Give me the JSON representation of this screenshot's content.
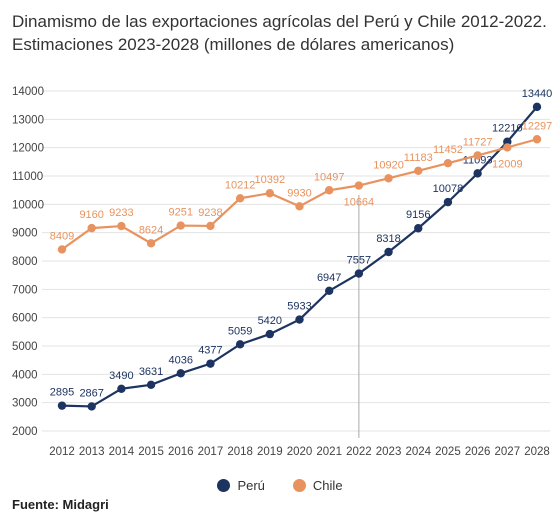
{
  "chart_data": {
    "type": "line",
    "title_line1": "Dinamismo de las exportaciones agrícolas del Perú y Chile 2012-2022.",
    "title_line2": "Estimaciones 2023-2028 (millones de dólares americanos)",
    "source": "Fuente: Midagri",
    "x": [
      "2012",
      "2013",
      "2014",
      "2015",
      "2016",
      "2017",
      "2018",
      "2019",
      "2020",
      "2021",
      "2022",
      "2023",
      "2024",
      "2025",
      "2026",
      "2027",
      "2028"
    ],
    "y_ticks": [
      2000,
      3000,
      4000,
      5000,
      6000,
      7000,
      8000,
      9000,
      10000,
      11000,
      12000,
      13000,
      14000
    ],
    "ylim": [
      2000,
      14000
    ],
    "divider_year": "2022",
    "series": [
      {
        "name": "Perú",
        "color": "#1d3461",
        "label_pos": "above",
        "values": [
          2895,
          2867,
          3490,
          3631,
          4036,
          4377,
          5059,
          5420,
          5933,
          6947,
          7557,
          8318,
          9156,
          10078,
          11093,
          12210,
          13440
        ]
      },
      {
        "name": "Chile",
        "color": "#e8935f",
        "label_pos": "above",
        "values": [
          8409,
          9160,
          9233,
          8624,
          9251,
          9238,
          10212,
          10392,
          9930,
          10497,
          10664,
          10920,
          11183,
          11452,
          11727,
          12009,
          12297
        ]
      }
    ]
  }
}
